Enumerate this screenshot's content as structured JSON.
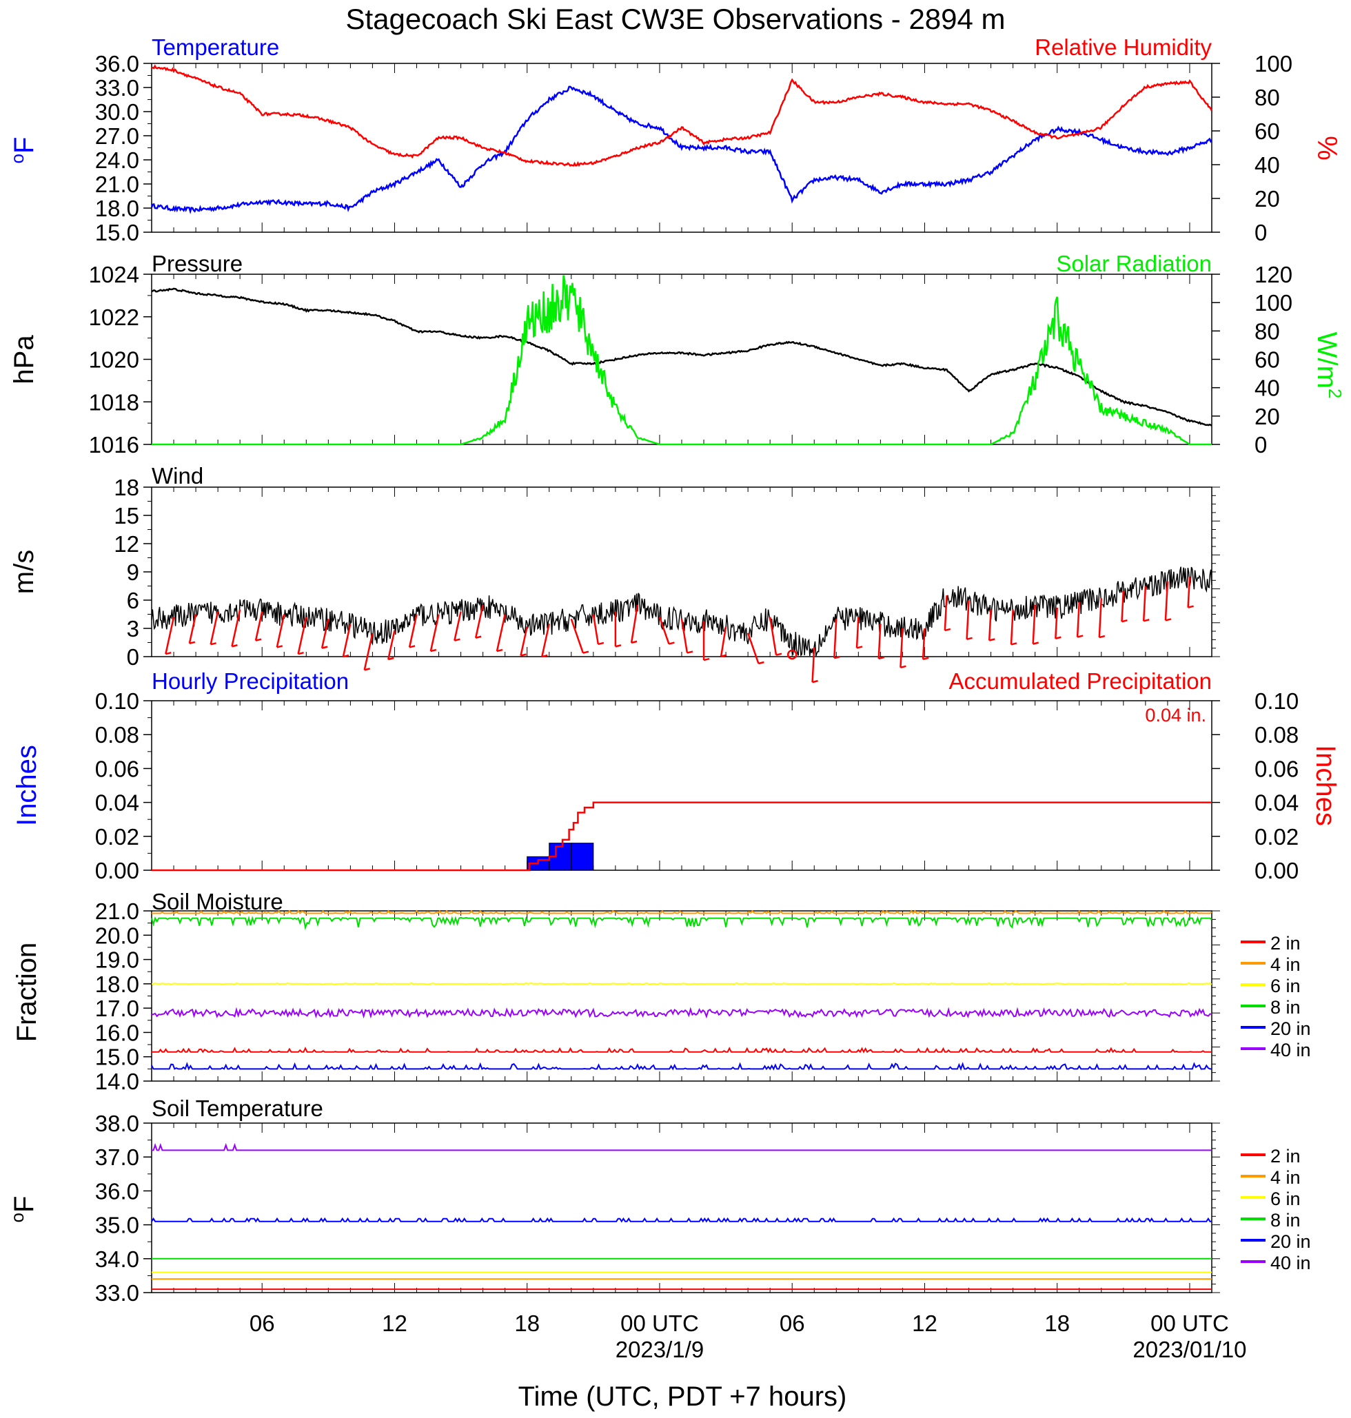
{
  "title": "Stagecoach Ski East CW3E Observations - 2894 m",
  "xaxis": {
    "title": "Time (UTC, PDT +7 hours)",
    "start_hour": 1,
    "end_hour": 49,
    "ticks": [
      {
        "h": 6,
        "label": "06"
      },
      {
        "h": 12,
        "label": "12"
      },
      {
        "h": 18,
        "label": "18"
      },
      {
        "h": 24,
        "label": "00 UTC"
      },
      {
        "h": 30,
        "label": "06"
      },
      {
        "h": 36,
        "label": "12"
      },
      {
        "h": 42,
        "label": "18"
      },
      {
        "h": 48,
        "label": "00 UTC"
      }
    ],
    "date_labels": [
      {
        "h": 24,
        "label": "2023/1/9"
      },
      {
        "h": 48,
        "label": "2023/01/10"
      }
    ]
  },
  "colors": {
    "temperature": "#0000ff",
    "humidity": "#ff0000",
    "pressure": "#000000",
    "solar": "#00ee00",
    "wind": "#000000",
    "barbs": "#ff0000",
    "precip_bar": "#0000ff",
    "precip_acc": "#ff0000"
  },
  "panels": {
    "temperature": {
      "left_title": "Temperature",
      "right_title": "Relative Humidity",
      "left_unit": "oF",
      "right_unit": "%",
      "yticks_left": [
        "36.0",
        "33.0",
        "30.0",
        "27.0",
        "24.0",
        "21.0",
        "18.0",
        "15.0"
      ],
      "yticks_right": [
        "100",
        "80",
        "60",
        "40",
        "20",
        "0"
      ]
    },
    "pressure": {
      "left_title": "Pressure",
      "right_title": "Solar Radiation",
      "left_unit": "hPa",
      "right_unit": "W/m",
      "right_unit_sup": "2",
      "yticks_left": [
        "1024",
        "1022",
        "1020",
        "1018",
        "1016"
      ],
      "yticks_right": [
        "120",
        "100",
        "80",
        "60",
        "40",
        "20",
        "0"
      ]
    },
    "wind": {
      "left_title": "Wind",
      "left_unit": "m/s",
      "yticks_left": [
        "18",
        "15",
        "12",
        "9",
        "6",
        "3",
        "0"
      ]
    },
    "precip": {
      "left_title": "Hourly Precipitation",
      "right_title": "Accumulated Precipitation",
      "total_label": "0.04 in.",
      "left_unit": "Inches",
      "right_unit": "Inches",
      "yticks_left": [
        "0.10",
        "0.08",
        "0.06",
        "0.04",
        "0.02",
        "0.00"
      ],
      "yticks_right": [
        "0.10",
        "0.08",
        "0.06",
        "0.04",
        "0.02",
        "0.00"
      ]
    },
    "soil_moisture": {
      "left_title": "Soil Moisture",
      "left_unit": "Fraction",
      "yticks_left": [
        "21.0",
        "20.0",
        "19.0",
        "18.0",
        "17.0",
        "16.0",
        "15.0",
        "14.0"
      ]
    },
    "soil_temp": {
      "left_title": "Soil Temperature",
      "left_unit": "oF",
      "yticks_left": [
        "38.0",
        "37.0",
        "36.0",
        "35.0",
        "34.0",
        "33.0"
      ]
    }
  },
  "legend": [
    {
      "label": "2 in",
      "color": "#ff0000"
    },
    {
      "label": "4 in",
      "color": "#ff9900"
    },
    {
      "label": "6 in",
      "color": "#ffff00"
    },
    {
      "label": "8 in",
      "color": "#00dd00"
    },
    {
      "label": "20 in",
      "color": "#0000ff"
    },
    {
      "label": "40 in",
      "color": "#9900ff"
    }
  ],
  "chart_data": [
    {
      "type": "line",
      "title": "Temperature",
      "ylabel": "oF",
      "ylim": [
        15,
        36
      ],
      "x_hours": [
        1,
        2,
        3,
        4,
        5,
        6,
        7,
        8,
        9,
        10,
        11,
        12,
        13,
        14,
        15,
        16,
        17,
        18,
        19,
        20,
        21,
        22,
        23,
        24,
        25,
        26,
        27,
        28,
        29,
        30,
        31,
        32,
        33,
        34,
        35,
        36,
        37,
        38,
        39,
        40,
        41,
        42,
        43,
        44,
        45,
        46,
        47,
        48,
        49
      ],
      "values": [
        18.3,
        17.9,
        17.8,
        18.0,
        18.4,
        18.8,
        18.7,
        18.5,
        18.6,
        18.0,
        20.0,
        21.0,
        22.5,
        24.0,
        20.6,
        23.5,
        25.0,
        29.0,
        31.5,
        33.0,
        32.0,
        30.0,
        28.5,
        28.0,
        25.5,
        25.5,
        25.5,
        25.0,
        25.0,
        19.0,
        21.5,
        21.8,
        21.5,
        20.0,
        21.0,
        21.0,
        21.0,
        21.5,
        22.5,
        24.5,
        26.5,
        27.8,
        27.5,
        26.5,
        25.5,
        25.0,
        24.8,
        25.5,
        26.5
      ]
    },
    {
      "type": "line",
      "title": "Relative Humidity",
      "ylabel": "%",
      "ylim": [
        0,
        100
      ],
      "x_hours": [
        1,
        2,
        3,
        4,
        5,
        6,
        7,
        8,
        9,
        10,
        11,
        12,
        13,
        14,
        15,
        16,
        17,
        18,
        19,
        20,
        21,
        22,
        23,
        24,
        25,
        26,
        27,
        28,
        29,
        30,
        31,
        32,
        33,
        34,
        35,
        36,
        37,
        38,
        39,
        40,
        41,
        42,
        43,
        44,
        45,
        46,
        47,
        48,
        49
      ],
      "values": [
        98,
        96,
        91,
        86,
        82,
        70,
        70,
        69,
        66,
        62,
        52,
        46,
        45,
        56,
        56,
        50,
        47,
        42,
        41,
        40,
        41,
        45,
        50,
        53,
        62,
        53,
        55,
        56,
        59,
        90,
        77,
        77,
        80,
        82,
        80,
        77,
        76,
        76,
        72,
        66,
        59,
        56,
        58,
        62,
        75,
        86,
        88,
        89,
        72
      ]
    },
    {
      "type": "line",
      "title": "Pressure",
      "ylabel": "hPa",
      "ylim": [
        1016,
        1024
      ],
      "x_hours": [
        1,
        2,
        3,
        4,
        5,
        6,
        7,
        8,
        9,
        10,
        11,
        12,
        13,
        14,
        15,
        16,
        17,
        18,
        19,
        20,
        21,
        22,
        23,
        24,
        25,
        26,
        27,
        28,
        29,
        30,
        31,
        32,
        33,
        34,
        35,
        36,
        37,
        38,
        39,
        40,
        41,
        42,
        43,
        44,
        45,
        46,
        47,
        48,
        49
      ],
      "values": [
        1023.2,
        1023.3,
        1023.1,
        1023.0,
        1022.9,
        1022.7,
        1022.6,
        1022.3,
        1022.3,
        1022.2,
        1022.1,
        1021.8,
        1021.3,
        1021.3,
        1021.1,
        1021.0,
        1021.1,
        1020.8,
        1020.4,
        1019.8,
        1019.8,
        1020.0,
        1020.2,
        1020.3,
        1020.3,
        1020.2,
        1020.3,
        1020.4,
        1020.7,
        1020.8,
        1020.6,
        1020.3,
        1020.0,
        1019.7,
        1019.8,
        1019.6,
        1019.5,
        1018.5,
        1019.3,
        1019.5,
        1019.8,
        1019.6,
        1019.2,
        1018.5,
        1018.0,
        1017.8,
        1017.5,
        1017.1,
        1016.9
      ]
    },
    {
      "type": "line",
      "title": "Solar Radiation",
      "ylabel": "W/m2",
      "ylim": [
        0,
        120
      ],
      "x_hours": [
        1,
        2,
        3,
        4,
        5,
        6,
        7,
        8,
        9,
        10,
        11,
        12,
        13,
        14,
        15,
        16,
        17,
        18,
        19,
        20,
        21,
        22,
        23,
        24,
        25,
        26,
        27,
        28,
        29,
        30,
        31,
        32,
        33,
        34,
        35,
        36,
        37,
        38,
        39,
        40,
        41,
        42,
        43,
        44,
        45,
        46,
        47,
        48,
        49
      ],
      "values": [
        0,
        0,
        0,
        0,
        0,
        0,
        0,
        0,
        0,
        0,
        0,
        0,
        0,
        0,
        0,
        5,
        18,
        85,
        95,
        105,
        65,
        25,
        5,
        0,
        0,
        0,
        0,
        0,
        0,
        0,
        0,
        0,
        0,
        0,
        0,
        0,
        0,
        0,
        0,
        8,
        45,
        90,
        55,
        25,
        20,
        15,
        10,
        0,
        0
      ]
    },
    {
      "type": "line",
      "title": "Wind",
      "ylabel": "m/s",
      "ylim": [
        0,
        18
      ],
      "x_hours": [
        1,
        2,
        3,
        4,
        5,
        6,
        7,
        8,
        9,
        10,
        11,
        12,
        13,
        14,
        15,
        16,
        17,
        18,
        19,
        20,
        21,
        22,
        23,
        24,
        25,
        26,
        27,
        28,
        29,
        30,
        31,
        32,
        33,
        34,
        35,
        36,
        37,
        38,
        39,
        40,
        41,
        42,
        43,
        44,
        45,
        46,
        47,
        48,
        49
      ],
      "values": [
        4.0,
        4.2,
        4.5,
        4.8,
        5.0,
        4.8,
        4.5,
        4.2,
        4.0,
        3.5,
        2.5,
        2.8,
        4.5,
        4.5,
        4.8,
        5.5,
        4.5,
        3.2,
        3.5,
        4.0,
        4.5,
        4.8,
        5.5,
        4.2,
        4.0,
        3.8,
        3.2,
        2.5,
        4.2,
        1.5,
        1.0,
        4.0,
        4.2,
        3.5,
        3.0,
        3.0,
        6.5,
        6.0,
        5.0,
        5.0,
        5.5,
        5.2,
        5.8,
        6.2,
        7.0,
        7.5,
        8.0,
        8.5,
        8.0
      ]
    },
    {
      "type": "bar",
      "title": "Hourly Precipitation",
      "ylabel": "Inches",
      "ylim": [
        0,
        0.1
      ],
      "x_hours": [
        18,
        19,
        20
      ],
      "values": [
        0.008,
        0.016,
        0.016
      ]
    },
    {
      "type": "line",
      "title": "Accumulated Precipitation",
      "ylabel": "Inches",
      "ylim": [
        0,
        0.1
      ],
      "x_hours": [
        1,
        18,
        18.1,
        18.5,
        19,
        19.3,
        19.6,
        19.9,
        20.1,
        20.3,
        20.6,
        21,
        49
      ],
      "values": [
        0,
        0,
        0.004,
        0.006,
        0.008,
        0.014,
        0.018,
        0.024,
        0.028,
        0.034,
        0.037,
        0.04,
        0.04
      ]
    },
    {
      "type": "line",
      "title": "Soil Moisture",
      "ylabel": "Fraction",
      "ylim": [
        14,
        21
      ],
      "series": [
        {
          "name": "2 in",
          "values": [
            15.2
          ]
        },
        {
          "name": "4 in",
          "values": [
            20.9
          ]
        },
        {
          "name": "6 in",
          "values": [
            18.0
          ]
        },
        {
          "name": "8 in",
          "values": [
            20.7
          ]
        },
        {
          "name": "20 in",
          "values": [
            14.5
          ]
        },
        {
          "name": "40 in",
          "values": [
            16.8
          ]
        }
      ]
    },
    {
      "type": "line",
      "title": "Soil Temperature",
      "ylabel": "oF",
      "ylim": [
        33,
        38
      ],
      "series": [
        {
          "name": "2 in",
          "values": [
            33.1
          ]
        },
        {
          "name": "4 in",
          "values": [
            33.4
          ]
        },
        {
          "name": "6 in",
          "values": [
            33.6
          ]
        },
        {
          "name": "8 in",
          "values": [
            34.0
          ]
        },
        {
          "name": "20 in",
          "values": [
            35.1
          ]
        },
        {
          "name": "40 in",
          "values": [
            37.2
          ]
        }
      ]
    }
  ]
}
